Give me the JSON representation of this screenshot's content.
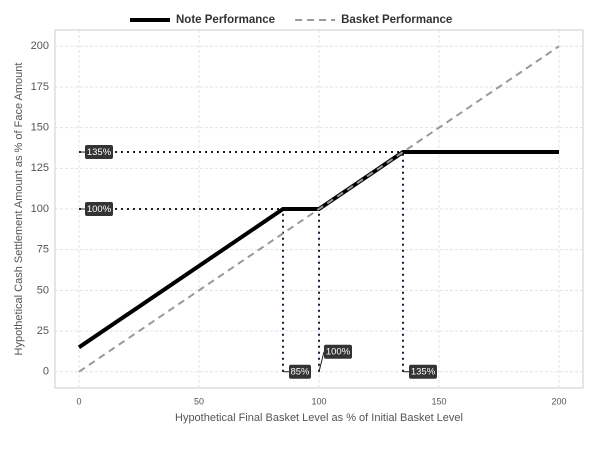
{
  "chart_data": {
    "type": "line",
    "xlabel": "Hypothetical Final Basket Level as % of Initial Basket Level",
    "ylabel": "Hypothetical Cash Settlement Amount as % of Face Amount",
    "xlim": [
      -10,
      210
    ],
    "ylim": [
      -10,
      210
    ],
    "xticks": [
      0,
      50,
      100,
      150,
      200
    ],
    "yticks": [
      0,
      25,
      50,
      75,
      100,
      125,
      150,
      175,
      200
    ],
    "grid": true,
    "legend": "top",
    "series": [
      {
        "name": "Note Performance",
        "color": "#000000",
        "style": "solid",
        "x": [
          0,
          85,
          100,
          135,
          200
        ],
        "values": [
          15,
          100,
          100,
          135,
          135
        ]
      },
      {
        "name": "Basket Performance",
        "color": "#999999",
        "style": "dashed",
        "x": [
          0,
          200
        ],
        "values": [
          0,
          200
        ]
      }
    ],
    "guides_h": [
      {
        "y": 135,
        "x_end": 135
      },
      {
        "y": 100,
        "x_end": 85
      }
    ],
    "guides_v": [
      {
        "x": 85,
        "y_end": 100
      },
      {
        "x": 100,
        "y_end": 100
      },
      {
        "x": 135,
        "y_end": 135
      }
    ],
    "annotations": [
      {
        "text": "135%",
        "x": 0,
        "y": 135
      },
      {
        "text": "100%",
        "x": 0,
        "y": 100
      },
      {
        "text": "85%",
        "x": 85,
        "y": 0
      },
      {
        "text": "100%",
        "x": 100,
        "y": 0
      },
      {
        "text": "135%",
        "x": 135,
        "y": 0
      }
    ]
  }
}
